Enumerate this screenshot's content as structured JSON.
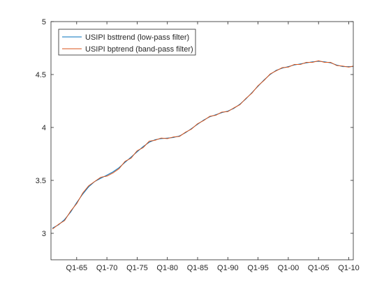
{
  "chart_data": {
    "type": "line",
    "title": "",
    "xlabel": "",
    "ylabel": "",
    "grid": false,
    "legend_position": "top-left",
    "xlim": [
      1961.75,
      2011.75
    ],
    "ylim": [
      2.75,
      5.0
    ],
    "xticks": [
      1966,
      1971,
      1976,
      1981,
      1986,
      1991,
      1996,
      2001,
      2006,
      2011
    ],
    "xtick_labels": [
      "Q1-65",
      "Q1-70",
      "Q1-75",
      "Q1-80",
      "Q1-85",
      "Q1-90",
      "Q1-95",
      "Q1-00",
      "Q1-05",
      "Q1-10"
    ],
    "yticks": [
      3,
      3.5,
      4,
      4.5,
      5
    ],
    "ytick_labels": [
      "3",
      "3.5",
      "4",
      "4.5",
      "5"
    ],
    "colors": {
      "low_pass": "#0072bd",
      "band_pass": "#d95319",
      "axis": "#262626",
      "frame": "#262626"
    },
    "series": [
      {
        "name": "USIPI bsttrend (low-pass filter)",
        "color": "#0072bd",
        "x": [
          1962,
          1963,
          1964,
          1965,
          1966,
          1967,
          1968,
          1969,
          1970,
          1971,
          1972,
          1973,
          1974,
          1975,
          1976,
          1977,
          1978,
          1979,
          1980,
          1981,
          1982,
          1983,
          1984,
          1985,
          1986,
          1987,
          1988,
          1989,
          1990,
          1991,
          1992,
          1993,
          1994,
          1995,
          1996,
          1997,
          1998,
          1999,
          2000,
          2001,
          2002,
          2003,
          2004,
          2005,
          2006,
          2007,
          2008,
          2009,
          2010,
          2011,
          2011.75
        ],
        "y": [
          3.05,
          3.08,
          3.13,
          3.2,
          3.29,
          3.37,
          3.44,
          3.49,
          3.52,
          3.55,
          3.58,
          3.62,
          3.67,
          3.72,
          3.77,
          3.82,
          3.86,
          3.885,
          3.895,
          3.9,
          3.905,
          3.92,
          3.95,
          3.99,
          4.03,
          4.07,
          4.1,
          4.12,
          4.14,
          4.155,
          4.18,
          4.22,
          4.27,
          4.33,
          4.39,
          4.45,
          4.5,
          4.54,
          4.56,
          4.575,
          4.59,
          4.6,
          4.61,
          4.62,
          4.625,
          4.62,
          4.61,
          4.59,
          4.575,
          4.575,
          4.575
        ]
      },
      {
        "name": "USIPI bptrend (band-pass filter)",
        "color": "#d95319",
        "x": [
          1962,
          1963,
          1964,
          1965,
          1966,
          1967,
          1968,
          1969,
          1970,
          1971,
          1972,
          1973,
          1974,
          1975,
          1976,
          1977,
          1978,
          1979,
          1980,
          1981,
          1982,
          1983,
          1984,
          1985,
          1986,
          1987,
          1988,
          1989,
          1990,
          1991,
          1992,
          1993,
          1994,
          1995,
          1996,
          1997,
          1998,
          1999,
          2000,
          2001,
          2002,
          2003,
          2004,
          2005,
          2006,
          2007,
          2008,
          2009,
          2010,
          2011,
          2011.75
        ],
        "y": [
          3.04,
          3.085,
          3.12,
          3.21,
          3.28,
          3.38,
          3.45,
          3.49,
          3.53,
          3.54,
          3.57,
          3.61,
          3.68,
          3.71,
          3.78,
          3.81,
          3.87,
          3.88,
          3.9,
          3.895,
          3.91,
          3.915,
          3.955,
          3.985,
          4.035,
          4.065,
          4.105,
          4.115,
          4.145,
          4.15,
          4.185,
          4.215,
          4.275,
          4.325,
          4.395,
          4.445,
          4.505,
          4.535,
          4.565,
          4.57,
          4.595,
          4.595,
          4.615,
          4.615,
          4.63,
          4.615,
          4.615,
          4.585,
          4.58,
          4.57,
          4.58
        ]
      }
    ]
  }
}
